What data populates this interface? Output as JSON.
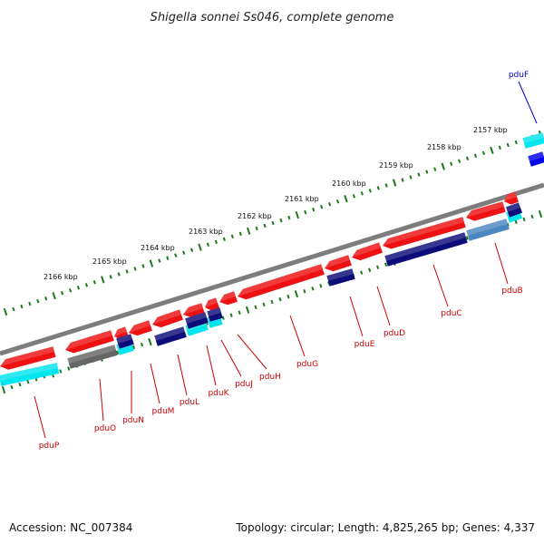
{
  "title": "Shigella sonnei Ss046, complete genome",
  "footer": {
    "accession": "Accession: NC_007384",
    "topology": "Topology: circular; Length: 4,825,265 bp; Genes: 4,337"
  },
  "colors": {
    "backbone": "#7d7d7d",
    "tick": "#1a7a1a",
    "label_red": "#cc0000",
    "label_blue": "#0000cc",
    "cds_red": "#ee1111",
    "rna_cyan": "#00e5ee",
    "blue_dark": "#0c0c7a",
    "grey": "#666666"
  },
  "kbp_labels": [
    "2157 kbp",
    "2158 kbp",
    "2159 kbp",
    "2160 kbp",
    "2161 kbp",
    "2162 kbp",
    "2163 kbp",
    "2164 kbp",
    "2165 kbp",
    "2166 kbp"
  ],
  "genes": [
    {
      "name": "pduF",
      "color": "blue"
    },
    {
      "name": "pduB",
      "color": "red"
    },
    {
      "name": "pduC",
      "color": "red"
    },
    {
      "name": "pduD",
      "color": "red"
    },
    {
      "name": "pduE",
      "color": "red"
    },
    {
      "name": "pduG",
      "color": "red"
    },
    {
      "name": "pduH",
      "color": "red"
    },
    {
      "name": "pduJ",
      "color": "red"
    },
    {
      "name": "pduK",
      "color": "red"
    },
    {
      "name": "pduL",
      "color": "red"
    },
    {
      "name": "pduM",
      "color": "red"
    },
    {
      "name": "pduN",
      "color": "red"
    },
    {
      "name": "pduO",
      "color": "red"
    },
    {
      "name": "pduP",
      "color": "red"
    }
  ]
}
